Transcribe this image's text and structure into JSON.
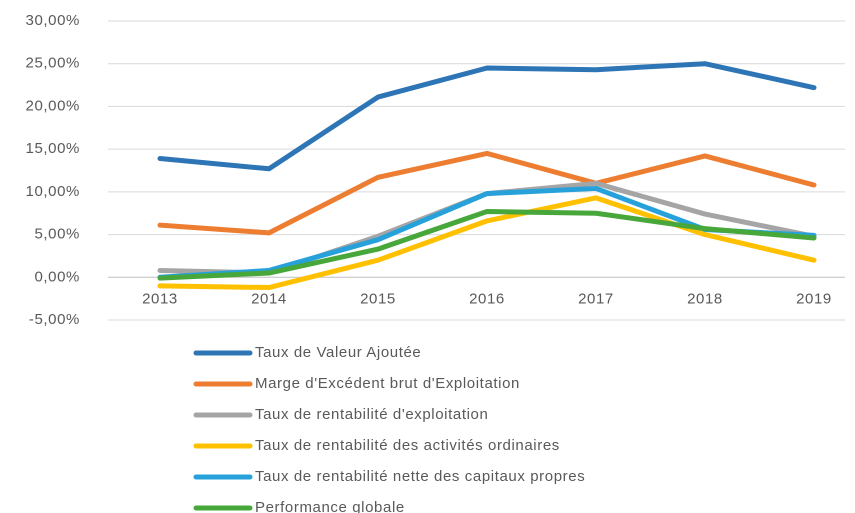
{
  "chart_data": {
    "type": "line",
    "categories": [
      "2013",
      "2014",
      "2015",
      "2016",
      "2017",
      "2018",
      "2019"
    ],
    "series": [
      {
        "name": "Taux de Valeur Ajoutée",
        "color": "#2e75b6",
        "values": [
          13.9,
          12.7,
          21.1,
          24.5,
          24.3,
          25.0,
          22.2
        ]
      },
      {
        "name": "Marge d'Excédent brut d'Exploitation",
        "color": "#ed7d31",
        "values": [
          6.1,
          5.2,
          11.7,
          14.5,
          11.0,
          14.2,
          10.8
        ]
      },
      {
        "name": "Taux de rentabilité d'exploitation",
        "color": "#a5a5a5",
        "values": [
          0.8,
          0.5,
          4.8,
          9.8,
          11.0,
          7.4,
          4.8
        ]
      },
      {
        "name": "Taux de rentabilité des activités ordinaires",
        "color": "#ffc000",
        "values": [
          -1.0,
          -1.2,
          2.0,
          6.6,
          9.3,
          5.0,
          2.0
        ]
      },
      {
        "name": "Taux de rentabilité nette des capitaux propres",
        "color": "#27a1da",
        "values": [
          0.0,
          0.8,
          4.4,
          9.8,
          10.4,
          5.6,
          4.9
        ]
      },
      {
        "name": "Performance globale",
        "color": "#47a73b",
        "values": [
          -0.1,
          0.5,
          3.3,
          7.7,
          7.5,
          5.7,
          4.6
        ]
      }
    ],
    "ylim": [
      -5,
      30
    ],
    "yticks": [
      {
        "value": -5,
        "label": "-5,00%"
      },
      {
        "value": 0,
        "label": "0,00%"
      },
      {
        "value": 5,
        "label": "5,00%"
      },
      {
        "value": 10,
        "label": "10,00%"
      },
      {
        "value": 15,
        "label": "15,00%"
      },
      {
        "value": 20,
        "label": "20,00%"
      },
      {
        "value": 25,
        "label": "25,00%"
      },
      {
        "value": 30,
        "label": "30,00%"
      }
    ],
    "grid": true,
    "legend": "bottom"
  }
}
